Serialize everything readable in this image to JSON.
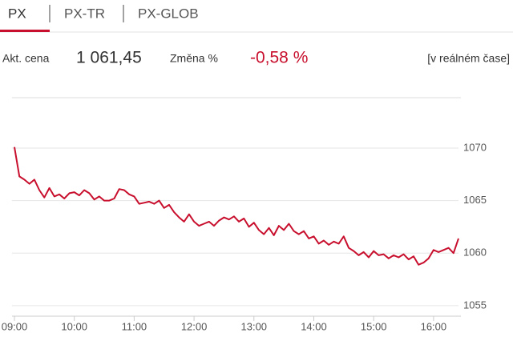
{
  "tabs": [
    "PX",
    "PX-TR",
    "PX-GLOB"
  ],
  "info": {
    "price_label": "Akt. cena",
    "price": "1 061,45",
    "change_label": "Změna %",
    "change": "-0,58 %",
    "mode": "[v reálném čase]"
  },
  "chart_data": {
    "type": "line",
    "color": "#c8102e",
    "grid": true,
    "x": [
      "09:00",
      "09:05",
      "09:10",
      "09:15",
      "09:20",
      "09:25",
      "09:30",
      "09:35",
      "09:40",
      "09:45",
      "09:50",
      "09:55",
      "10:00",
      "10:05",
      "10:10",
      "10:15",
      "10:20",
      "10:25",
      "10:30",
      "10:35",
      "10:40",
      "10:45",
      "10:50",
      "10:55",
      "11:00",
      "11:05",
      "11:10",
      "11:15",
      "11:20",
      "11:25",
      "11:30",
      "11:35",
      "11:40",
      "11:45",
      "11:50",
      "11:55",
      "12:00",
      "12:05",
      "12:10",
      "12:15",
      "12:20",
      "12:25",
      "12:30",
      "12:35",
      "12:40",
      "12:45",
      "12:50",
      "12:55",
      "13:00",
      "13:05",
      "13:10",
      "13:15",
      "13:20",
      "13:25",
      "13:30",
      "13:35",
      "13:40",
      "13:45",
      "13:50",
      "13:55",
      "14:00",
      "14:05",
      "14:10",
      "14:15",
      "14:20",
      "14:25",
      "14:30",
      "14:35",
      "14:40",
      "14:45",
      "14:50",
      "14:55",
      "15:00",
      "15:05",
      "15:10",
      "15:15",
      "15:20",
      "15:25",
      "15:30",
      "15:35",
      "15:40",
      "15:45",
      "15:50",
      "15:55",
      "16:00",
      "16:05",
      "16:10",
      "16:15",
      "16:20",
      "16:25"
    ],
    "values": [
      1070.1,
      1067.3,
      1067.0,
      1066.6,
      1067.0,
      1066.0,
      1065.3,
      1066.2,
      1065.4,
      1065.6,
      1065.2,
      1065.7,
      1065.8,
      1065.5,
      1066.0,
      1065.7,
      1065.1,
      1065.4,
      1065.0,
      1065.0,
      1065.2,
      1066.1,
      1066.0,
      1065.6,
      1065.4,
      1064.7,
      1064.8,
      1064.9,
      1064.7,
      1065.0,
      1064.3,
      1064.6,
      1063.9,
      1063.4,
      1063.0,
      1063.7,
      1063.0,
      1062.6,
      1062.8,
      1063.0,
      1062.6,
      1063.1,
      1063.4,
      1063.2,
      1063.5,
      1063.0,
      1063.3,
      1062.5,
      1062.9,
      1062.2,
      1061.8,
      1062.4,
      1061.7,
      1062.6,
      1062.2,
      1062.8,
      1062.1,
      1061.8,
      1062.1,
      1061.4,
      1061.6,
      1060.9,
      1061.2,
      1060.8,
      1061.1,
      1060.9,
      1061.6,
      1060.5,
      1060.2,
      1059.8,
      1060.1,
      1059.6,
      1060.2,
      1059.8,
      1059.9,
      1059.5,
      1059.8,
      1059.6,
      1059.9,
      1059.4,
      1059.7,
      1058.9,
      1059.1,
      1059.5,
      1060.3,
      1060.1,
      1060.3,
      1060.5,
      1060.0,
      1061.4
    ],
    "xlim": [
      "09:00",
      "16:25"
    ],
    "xticks": [
      "09:00",
      "10:00",
      "11:00",
      "12:00",
      "13:00",
      "14:00",
      "15:00",
      "16:00"
    ],
    "ylim": [
      1054,
      1074.8
    ],
    "yticks": [
      1055,
      1060,
      1065,
      1070
    ]
  }
}
